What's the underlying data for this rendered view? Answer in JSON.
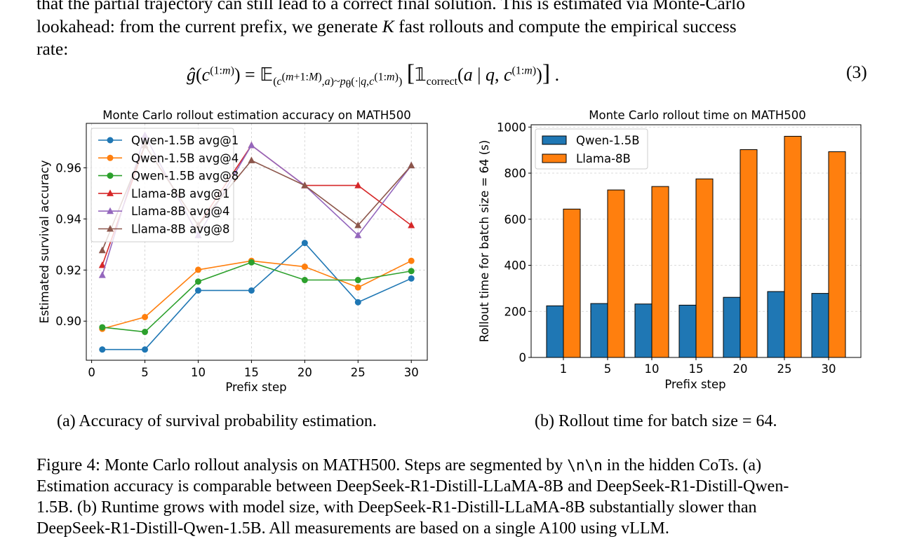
{
  "text": {
    "line1": "that the partial trajectory can still lead to a correct final solution. This is estimated via Monte-Carlo",
    "line2_a": "lookahead: from the current prefix, we generate ",
    "line2_k": "K",
    "line2_b": " fast rollouts and compute the empirical success",
    "line3": "rate:",
    "equation": "ĝ(c^(1:m)) = E_(c^(m+1:M), a)~p_θ(·|q, c^(1:m)) [ 1_correct(a | q, c^(1:m)) ].",
    "equation_number": "(3)"
  },
  "subcaptions": {
    "a": "(a) Accuracy of survival probability estimation.",
    "b": "(b) Rollout time for batch size = 64."
  },
  "figure_caption": {
    "label": "Figure 4:",
    "row1_a": " Monte Carlo rollout analysis on MATH500. Steps are segmented by ",
    "row1_code": "\\n\\n",
    "row1_b": " in the hidden CoTs. (a)",
    "row2": "Estimation accuracy is comparable between DeepSeek-R1-Distill-LLaMA-8B and DeepSeek-R1-Distill-Qwen-",
    "row3": "1.5B. (b) Runtime grows with model size, with DeepSeek-R1-Distill-LLaMA-8B substantially slower than",
    "row4": "DeepSeek-R1-Distill-Qwen-1.5B. All measurements are based on a single A100 using vLLM."
  },
  "chart_data": [
    {
      "type": "line",
      "title": "Monte Carlo rollout estimation accuracy on MATH500",
      "xlabel": "Prefix step",
      "ylabel": "Estimated survival accuracy",
      "x": [
        1,
        5,
        10,
        15,
        20,
        25,
        30
      ],
      "xticks": [
        0,
        5,
        10,
        15,
        20,
        25,
        30
      ],
      "yticks": [
        0.9,
        0.92,
        0.94,
        0.96
      ],
      "ytick_labels": [
        "0.90",
        "0.92",
        "0.94",
        "0.96"
      ],
      "xlim": [
        -0.5,
        31.5
      ],
      "ylim": [
        0.8847,
        0.9774
      ],
      "grid": true,
      "legend_position": "upper-left",
      "series": [
        {
          "name": "Qwen-1.5B avg@1",
          "color": "#1f77b4",
          "marker": "circle",
          "values": [
            0.8889,
            0.8889,
            0.912,
            0.912,
            0.9306,
            0.9074,
            0.9167
          ]
        },
        {
          "name": "Qwen-1.5B avg@4",
          "color": "#ff7f0e",
          "marker": "circle",
          "values": [
            0.897,
            0.9016,
            0.9201,
            0.9236,
            0.9213,
            0.9132,
            0.9236
          ]
        },
        {
          "name": "Qwen-1.5B avg@8",
          "color": "#2ca02c",
          "marker": "circle",
          "values": [
            0.8976,
            0.8958,
            0.9155,
            0.923,
            0.9161,
            0.9161,
            0.9196
          ]
        },
        {
          "name": "Llama-8B avg@1",
          "color": "#d62728",
          "marker": "triangle",
          "values": [
            0.9219,
            0.9688,
            0.9375,
            0.9688,
            0.9531,
            0.9531,
            0.9375
          ]
        },
        {
          "name": "Llama-8B avg@4",
          "color": "#9467bd",
          "marker": "triangle",
          "values": [
            0.918,
            0.9727,
            0.9336,
            0.9688,
            0.9531,
            0.9336,
            0.9609
          ]
        },
        {
          "name": "Llama-8B avg@8",
          "color": "#8c564b",
          "marker": "triangle",
          "values": [
            0.9277,
            0.9688,
            0.9375,
            0.9629,
            0.9531,
            0.9375,
            0.9609
          ]
        }
      ]
    },
    {
      "type": "bar",
      "title": "Monte Carlo rollout time on MATH500",
      "xlabel": "Prefix step",
      "ylabel": "Rollout time for batch size = 64 (s)",
      "categories": [
        "1",
        "5",
        "10",
        "15",
        "20",
        "25",
        "30"
      ],
      "yticks": [
        0,
        200,
        400,
        600,
        800,
        1000
      ],
      "ylim": [
        0,
        1010
      ],
      "grid": true,
      "legend_position": "upper-left",
      "series": [
        {
          "name": "Qwen-1.5B",
          "color": "#1f77b4",
          "values": [
            224,
            234,
            232,
            227,
            261,
            286,
            278
          ]
        },
        {
          "name": "Llama-8B",
          "color": "#ff7f0e",
          "values": [
            644,
            727,
            742,
            775,
            902,
            960,
            893
          ]
        }
      ]
    }
  ]
}
